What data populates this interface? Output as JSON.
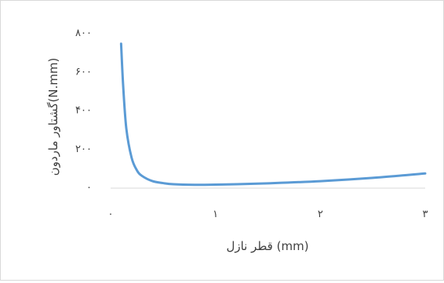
{
  "chart_data": {
    "type": "line",
    "title": "",
    "xlabel": "قطر نازل (mm)",
    "ylabel": "گشتاور ماردون(N.mm)",
    "xlim": [
      0,
      3
    ],
    "ylim": [
      0,
      800
    ],
    "x_ticks": [
      0,
      1,
      2,
      3
    ],
    "x_tick_labels": [
      "۰",
      "۱",
      "۲",
      "۳"
    ],
    "y_ticks": [
      0,
      200,
      400,
      600,
      800
    ],
    "y_tick_labels": [
      "۰",
      "۲۰۰",
      "۴۰۰",
      "۶۰۰",
      "۸۰۰"
    ],
    "grid": false,
    "legend": "none",
    "series": [
      {
        "color": "#5b9bd5",
        "x": [
          0.1,
          0.12,
          0.15,
          0.2,
          0.25,
          0.3,
          0.4,
          0.5,
          0.6,
          0.8,
          1.0,
          1.2,
          1.5,
          2.0,
          2.5,
          3.0
        ],
        "y": [
          740,
          520,
          300,
          150,
          85,
          55,
          28,
          18,
          12,
          9,
          10,
          12,
          17,
          28,
          45,
          68
        ]
      }
    ]
  }
}
